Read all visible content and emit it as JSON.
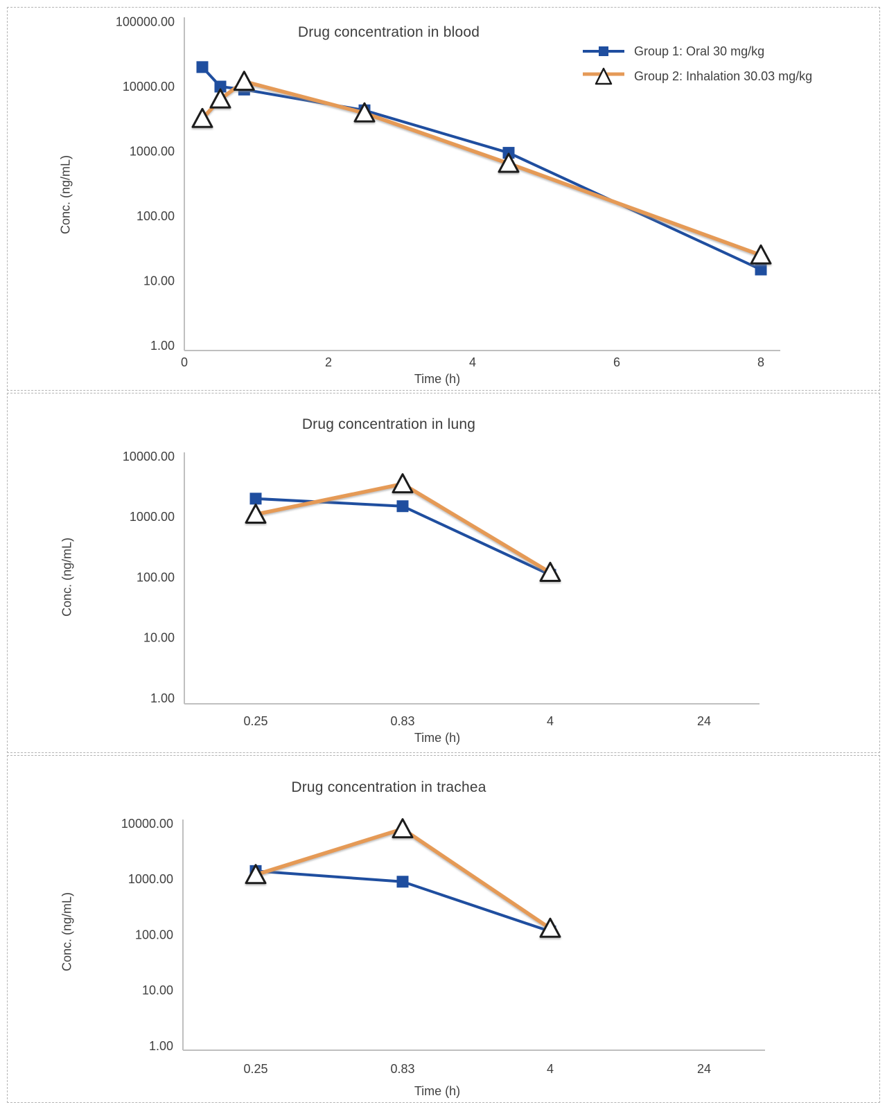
{
  "colors": {
    "group1": "#1F4E9F",
    "group2": "#E59A57",
    "axis": "#BFBFBF",
    "text": "#404040",
    "marker_outline": "#1A1A1A",
    "triangle_fill": "#FFFFFF"
  },
  "legend": {
    "items": [
      {
        "label": "Group 1: Oral 30 mg/kg"
      },
      {
        "label": "Group 2: Inhalation 30.03 mg/kg"
      }
    ]
  },
  "chart_data": [
    {
      "type": "line",
      "title": "Drug concentration in blood",
      "xlabel": "Time (h)",
      "ylabel": "Conc. (ng/mL)",
      "x_axis": {
        "mode": "linear",
        "ticks": [
          "0",
          "2",
          "4",
          "6",
          "8"
        ]
      },
      "y_axis": {
        "mode": "log",
        "min": 1,
        "max": 100000,
        "ticks": [
          "100000.00",
          "10000.00",
          "1000.00",
          "100.00",
          "10.00",
          "1.00"
        ]
      },
      "legend_position": "top-right",
      "series": [
        {
          "name": "Group 1: Oral 30 mg/kg",
          "marker": "square",
          "color_key": "group1",
          "x": [
            0.25,
            0.5,
            0.83,
            2.5,
            4.5,
            8
          ],
          "y": [
            20000,
            10000,
            9000,
            4300,
            950,
            15
          ]
        },
        {
          "name": "Group 2: Inhalation 30.03 mg/kg",
          "marker": "triangle",
          "color_key": "group2",
          "x": [
            0.25,
            0.5,
            0.83,
            2.5,
            4.5,
            8
          ],
          "y": [
            3200,
            6400,
            12000,
            3900,
            650,
            25
          ]
        }
      ]
    },
    {
      "type": "line",
      "title": "Drug concentration in lung",
      "xlabel": "Time (h)",
      "ylabel": "Conc. (ng/mL)",
      "x_axis": {
        "mode": "category",
        "categories": [
          "0.25",
          "0.83",
          "4",
          "24"
        ]
      },
      "y_axis": {
        "mode": "log",
        "min": 1,
        "max": 10000,
        "ticks": [
          "10000.00",
          "1000.00",
          "100.00",
          "10.00",
          "1.00"
        ]
      },
      "series": [
        {
          "name": "Group 1: Oral 30 mg/kg",
          "marker": "square",
          "color_key": "group1",
          "y": [
            2000,
            1500,
            110,
            null
          ]
        },
        {
          "name": "Group 2: Inhalation 30.03 mg/kg",
          "marker": "triangle",
          "color_key": "group2",
          "y": [
            1100,
            3500,
            120,
            null
          ]
        }
      ]
    },
    {
      "type": "line",
      "title": "Drug concentration in trachea",
      "xlabel": "Time (h)",
      "ylabel": "Conc. (ng/mL)",
      "x_axis": {
        "mode": "category",
        "categories": [
          "0.25",
          "0.83",
          "4",
          "24"
        ]
      },
      "y_axis": {
        "mode": "log",
        "min": 1,
        "max": 10000,
        "ticks": [
          "10000.00",
          "1000.00",
          "100.00",
          "10.00",
          "1.00"
        ]
      },
      "series": [
        {
          "name": "Group 1: Oral 30 mg/kg",
          "marker": "square",
          "color_key": "group1",
          "y": [
            1400,
            900,
            115,
            null
          ]
        },
        {
          "name": "Group 2: Inhalation 30.03 mg/kg",
          "marker": "triangle",
          "color_key": "group2",
          "y": [
            1200,
            8000,
            130,
            null
          ]
        }
      ]
    }
  ]
}
